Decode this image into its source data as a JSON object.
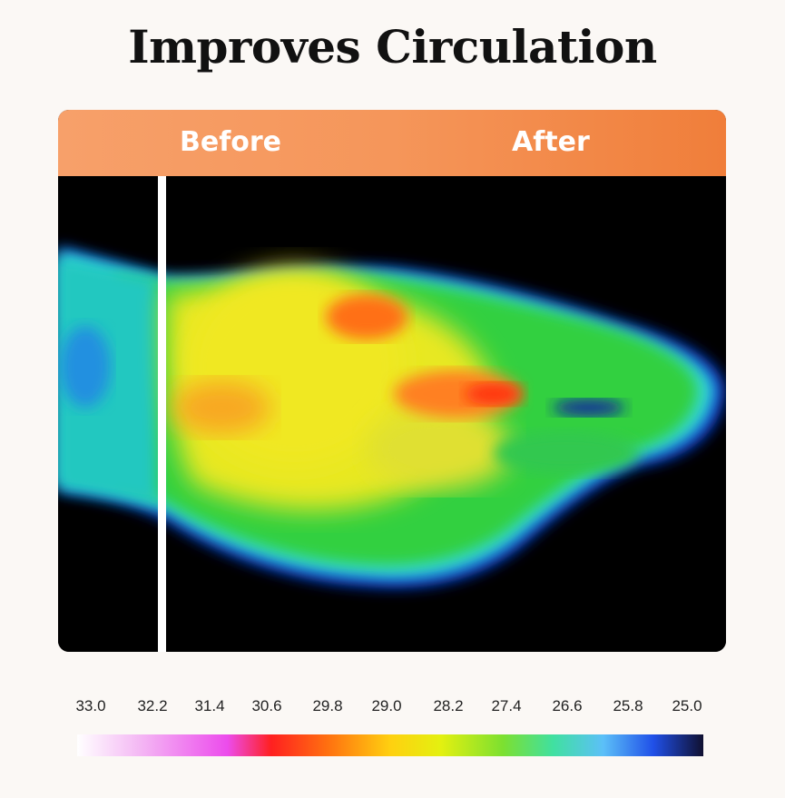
{
  "title": "Improves Circulation",
  "comparison": {
    "before_label": "Before",
    "after_label": "After"
  },
  "temperature_scale": {
    "ticks": [
      "33.0",
      "32.2",
      "31.4",
      "30.6",
      "29.8",
      "29.0",
      "28.2",
      "27.4",
      "26.6",
      "25.8",
      "25.0"
    ]
  }
}
